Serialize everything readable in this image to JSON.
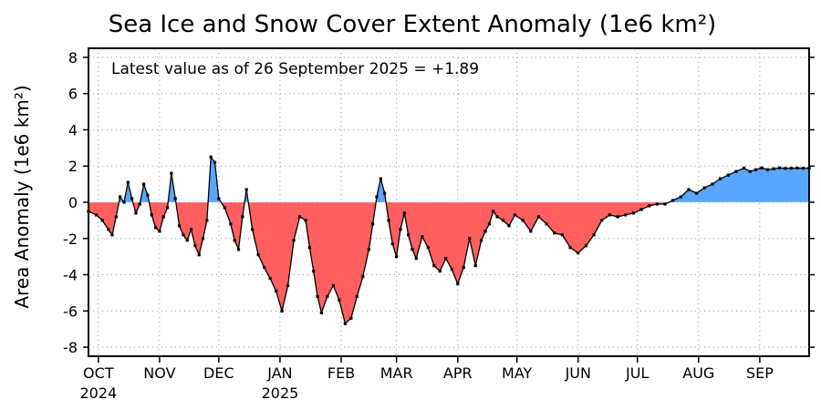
{
  "chart_data": {
    "type": "area",
    "title": "Sea Ice and Snow Cover Extent Anomaly (1e6 km²)",
    "ylabel": "Area Anomaly (1e6 km²)",
    "xlabel": "",
    "annotation": "Latest value as of 26 September 2025 = +1.89",
    "ylim": [
      -8.5,
      8.5
    ],
    "yticks": [
      8,
      6,
      4,
      2,
      0,
      -2,
      -4,
      -6,
      -8
    ],
    "x_start": "2024-09-26",
    "x_end": "2025-09-26",
    "xticks": [
      {
        "date": "2024-10-01",
        "label": "OCT",
        "year": "2024"
      },
      {
        "date": "2024-11-01",
        "label": "NOV",
        "year": ""
      },
      {
        "date": "2024-12-01",
        "label": "DEC",
        "year": ""
      },
      {
        "date": "2025-01-01",
        "label": "JAN",
        "year": "2025"
      },
      {
        "date": "2025-02-01",
        "label": "FEB",
        "year": ""
      },
      {
        "date": "2025-03-01",
        "label": "MAR",
        "year": ""
      },
      {
        "date": "2025-04-01",
        "label": "APR",
        "year": ""
      },
      {
        "date": "2025-05-01",
        "label": "MAY",
        "year": ""
      },
      {
        "date": "2025-06-01",
        "label": "JUN",
        "year": ""
      },
      {
        "date": "2025-07-01",
        "label": "JUL",
        "year": ""
      },
      {
        "date": "2025-08-01",
        "label": "AUG",
        "year": ""
      },
      {
        "date": "2025-09-01",
        "label": "SEP",
        "year": ""
      }
    ],
    "grid": true,
    "colors": {
      "positive": "#5aa5ff",
      "negative": "#ff5f5f",
      "line": "#000000"
    },
    "series": [
      {
        "name": "",
        "x": [
          "2024-09-26",
          "2024-09-30",
          "2024-10-03",
          "2024-10-06",
          "2024-10-08",
          "2024-10-10",
          "2024-10-12",
          "2024-10-14",
          "2024-10-16",
          "2024-10-18",
          "2024-10-20",
          "2024-10-22",
          "2024-10-24",
          "2024-10-26",
          "2024-10-28",
          "2024-10-30",
          "2024-11-01",
          "2024-11-03",
          "2024-11-05",
          "2024-11-07",
          "2024-11-09",
          "2024-11-11",
          "2024-11-13",
          "2024-11-15",
          "2024-11-17",
          "2024-11-19",
          "2024-11-21",
          "2024-11-23",
          "2024-11-25",
          "2024-11-27",
          "2024-11-29",
          "2024-12-01",
          "2024-12-04",
          "2024-12-07",
          "2024-12-09",
          "2024-12-11",
          "2024-12-13",
          "2024-12-15",
          "2024-12-18",
          "2024-12-21",
          "2024-12-24",
          "2024-12-27",
          "2024-12-30",
          "2025-01-02",
          "2025-01-05",
          "2025-01-08",
          "2025-01-11",
          "2025-01-14",
          "2025-01-16",
          "2025-01-18",
          "2025-01-20",
          "2025-01-22",
          "2025-01-25",
          "2025-01-28",
          "2025-01-31",
          "2025-02-03",
          "2025-02-06",
          "2025-02-09",
          "2025-02-12",
          "2025-02-15",
          "2025-02-17",
          "2025-02-19",
          "2025-02-21",
          "2025-02-23",
          "2025-02-25",
          "2025-02-27",
          "2025-03-01",
          "2025-03-03",
          "2025-03-05",
          "2025-03-07",
          "2025-03-09",
          "2025-03-11",
          "2025-03-14",
          "2025-03-17",
          "2025-03-20",
          "2025-03-23",
          "2025-03-26",
          "2025-03-29",
          "2025-04-01",
          "2025-04-04",
          "2025-04-07",
          "2025-04-10",
          "2025-04-13",
          "2025-04-15",
          "2025-04-17",
          "2025-04-19",
          "2025-04-21",
          "2025-04-24",
          "2025-04-27",
          "2025-04-30",
          "2025-05-04",
          "2025-05-08",
          "2025-05-12",
          "2025-05-16",
          "2025-05-20",
          "2025-05-24",
          "2025-05-28",
          "2025-06-01",
          "2025-06-05",
          "2025-06-09",
          "2025-06-13",
          "2025-06-17",
          "2025-06-21",
          "2025-06-25",
          "2025-06-29",
          "2025-07-03",
          "2025-07-07",
          "2025-07-11",
          "2025-07-15",
          "2025-07-19",
          "2025-07-23",
          "2025-07-27",
          "2025-07-31",
          "2025-08-04",
          "2025-08-08",
          "2025-08-12",
          "2025-08-16",
          "2025-08-20",
          "2025-08-24",
          "2025-08-27",
          "2025-08-30",
          "2025-09-02",
          "2025-09-05",
          "2025-09-08",
          "2025-09-11",
          "2025-09-14",
          "2025-09-17",
          "2025-09-20",
          "2025-09-23",
          "2025-09-26"
        ],
        "y": [
          -0.5,
          -0.7,
          -1.0,
          -1.5,
          -1.8,
          -0.8,
          0.3,
          0.0,
          1.1,
          0.2,
          -0.6,
          -0.1,
          1.0,
          0.4,
          -0.7,
          -1.4,
          -1.6,
          -0.8,
          -0.3,
          1.6,
          0.2,
          -1.3,
          -1.8,
          -2.1,
          -1.5,
          -2.4,
          -2.9,
          -2.0,
          -1.0,
          2.5,
          2.2,
          0.2,
          -0.3,
          -1.2,
          -2.1,
          -2.6,
          -0.8,
          0.7,
          -1.5,
          -2.9,
          -3.6,
          -4.2,
          -4.9,
          -6.0,
          -4.6,
          -2.1,
          -0.8,
          -1.0,
          -2.5,
          -3.8,
          -5.2,
          -6.1,
          -5.2,
          -4.6,
          -5.4,
          -6.7,
          -6.4,
          -5.2,
          -4.1,
          -2.6,
          -1.2,
          0.3,
          1.3,
          0.5,
          -1.0,
          -2.3,
          -3.0,
          -1.5,
          -0.6,
          -1.8,
          -2.6,
          -3.1,
          -1.9,
          -2.5,
          -3.5,
          -3.8,
          -3.1,
          -3.7,
          -4.5,
          -3.6,
          -2.0,
          -3.5,
          -2.1,
          -1.6,
          -1.2,
          -0.5,
          -0.8,
          -1.0,
          -1.3,
          -0.7,
          -1.0,
          -1.6,
          -0.8,
          -1.2,
          -1.7,
          -1.8,
          -2.5,
          -2.8,
          -2.4,
          -1.8,
          -1.0,
          -0.7,
          -0.8,
          -0.7,
          -0.6,
          -0.4,
          -0.2,
          -0.1,
          -0.1,
          0.1,
          0.3,
          0.7,
          0.5,
          0.8,
          1.0,
          1.3,
          1.5,
          1.7,
          1.89,
          1.7,
          1.8,
          1.9,
          1.8,
          1.85,
          1.9,
          1.87,
          1.88,
          1.89,
          1.88,
          1.89
        ]
      }
    ]
  }
}
